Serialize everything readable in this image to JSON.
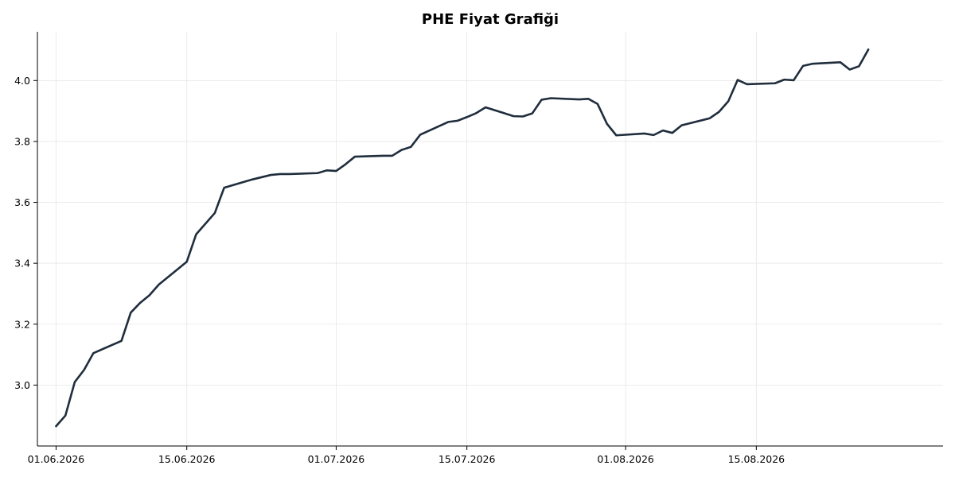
{
  "chart_data": {
    "type": "line",
    "title": "PHE Fiyat Grafiği",
    "xlabel": "",
    "ylabel": "",
    "x_axis_type": "date",
    "xlim": [
      "2026-05-30",
      "2026-09-04"
    ],
    "ylim": [
      2.8,
      4.16
    ],
    "grid": true,
    "x_ticks": [
      {
        "value": "2026-06-01",
        "label": "01.06.2026"
      },
      {
        "value": "2026-06-15",
        "label": "15.06.2026"
      },
      {
        "value": "2026-07-01",
        "label": "01.07.2026"
      },
      {
        "value": "2026-07-15",
        "label": "15.07.2026"
      },
      {
        "value": "2026-08-01",
        "label": "01.08.2026"
      },
      {
        "value": "2026-08-15",
        "label": "15.08.2026"
      }
    ],
    "y_ticks": [
      {
        "value": 3.0,
        "label": "3.0"
      },
      {
        "value": 3.2,
        "label": "3.2"
      },
      {
        "value": 3.4,
        "label": "3.4"
      },
      {
        "value": 3.6,
        "label": "3.6"
      },
      {
        "value": 3.8,
        "label": "3.8"
      },
      {
        "value": 4.0,
        "label": "4.0"
      }
    ],
    "line_color": "#1f2d3d",
    "series": [
      {
        "x": [
          "2026-06-01",
          "2026-06-02",
          "2026-06-03",
          "2026-06-04",
          "2026-06-05",
          "2026-06-08",
          "2026-06-09",
          "2026-06-10",
          "2026-06-11",
          "2026-06-12",
          "2026-06-15",
          "2026-06-16",
          "2026-06-18",
          "2026-06-19",
          "2026-06-22",
          "2026-06-24",
          "2026-06-25",
          "2026-06-26",
          "2026-06-29",
          "2026-06-30",
          "2026-07-01",
          "2026-07-02",
          "2026-07-03",
          "2026-07-06",
          "2026-07-07",
          "2026-07-08",
          "2026-07-09",
          "2026-07-10",
          "2026-07-13",
          "2026-07-14",
          "2026-07-15",
          "2026-07-16",
          "2026-07-17",
          "2026-07-20",
          "2026-07-21",
          "2026-07-22",
          "2026-07-23",
          "2026-07-24",
          "2026-07-27",
          "2026-07-28",
          "2026-07-29",
          "2026-07-30",
          "2026-07-31",
          "2026-08-03",
          "2026-08-04",
          "2026-08-05",
          "2026-08-06",
          "2026-08-07",
          "2026-08-10",
          "2026-08-11",
          "2026-08-12",
          "2026-08-13",
          "2026-08-14",
          "2026-08-17",
          "2026-08-18",
          "2026-08-19",
          "2026-08-20",
          "2026-08-21",
          "2026-08-24",
          "2026-08-25",
          "2026-08-26",
          "2026-08-27"
        ],
        "values": [
          2.865,
          2.9,
          3.01,
          3.05,
          3.105,
          3.145,
          3.238,
          3.27,
          3.295,
          3.33,
          3.405,
          3.495,
          3.565,
          3.648,
          3.675,
          3.69,
          3.693,
          3.693,
          3.696,
          3.705,
          3.703,
          3.725,
          3.75,
          3.753,
          3.753,
          3.772,
          3.782,
          3.822,
          3.864,
          3.868,
          3.88,
          3.893,
          3.912,
          3.883,
          3.882,
          3.892,
          3.937,
          3.942,
          3.938,
          3.94,
          3.923,
          3.858,
          3.82,
          3.826,
          3.821,
          3.836,
          3.828,
          3.853,
          3.876,
          3.897,
          3.932,
          4.002,
          3.988,
          3.991,
          4.003,
          4.001,
          4.048,
          4.055,
          4.06,
          4.036,
          4.047,
          4.102
        ]
      }
    ]
  }
}
